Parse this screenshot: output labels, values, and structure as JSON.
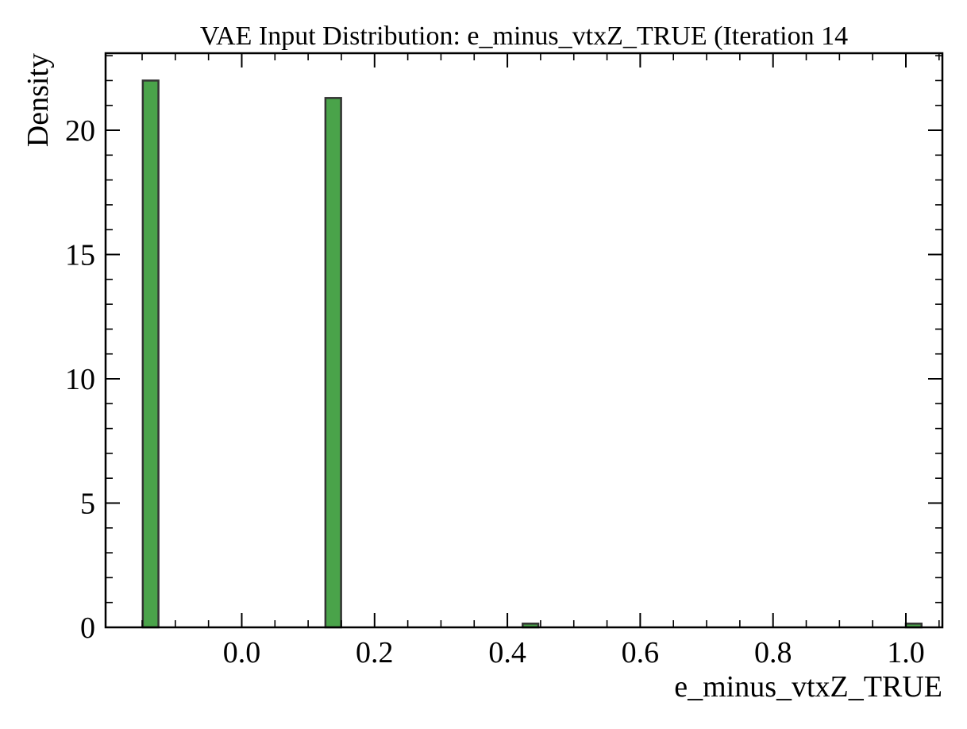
{
  "chart_data": {
    "type": "bar",
    "title": "VAE Input Distribution: e_minus_vtxZ_TRUE (Iteration 14",
    "xlabel": "e_minus_vtxZ_TRUE",
    "ylabel": "Density",
    "xlim": [
      -0.205,
      1.055
    ],
    "ylim": [
      0,
      23.1
    ],
    "x_ticks": [
      0.0,
      0.2,
      0.4,
      0.6,
      0.8,
      1.0
    ],
    "x_tick_labels": [
      "0.0",
      "0.2",
      "0.4",
      "0.6",
      "0.8",
      "1.0"
    ],
    "y_ticks": [
      0,
      5,
      10,
      15,
      20
    ],
    "y_tick_labels": [
      "0",
      "5",
      "10",
      "15",
      "20"
    ],
    "bin_width": 0.0236,
    "bars": [
      {
        "x_left": -0.149,
        "value": 22.0
      },
      {
        "x_left": 0.126,
        "value": 21.3
      },
      {
        "x_left": 0.423,
        "value": 0.15
      },
      {
        "x_left": 1.0,
        "value": 0.15
      }
    ],
    "bar_color": "#4aa34a",
    "edge_color": "#333333",
    "grid": false
  }
}
